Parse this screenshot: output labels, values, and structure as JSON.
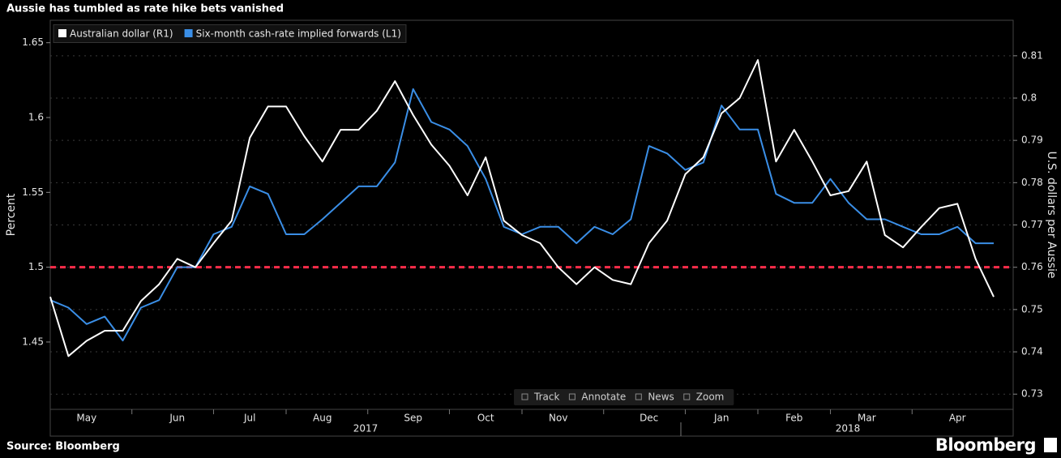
{
  "chart_data": {
    "type": "line",
    "title": "Aussie has tumbled as rate hike bets vanished",
    "source": "Source: Bloomberg",
    "brand": "Bloomberg",
    "y_label": "Percent",
    "y2_label": "U.S. dollars per Aussie",
    "categories": [
      null,
      null,
      "May",
      null,
      null,
      null,
      null,
      "Jun",
      null,
      null,
      null,
      "Jul",
      null,
      null,
      null,
      "Aug",
      null,
      null,
      null,
      null,
      "Sep",
      null,
      null,
      null,
      "Oct",
      null,
      null,
      null,
      "Nov",
      null,
      null,
      null,
      null,
      "Dec",
      null,
      null,
      null,
      "Jan",
      null,
      null,
      null,
      "Feb",
      null,
      null,
      null,
      "Mar",
      null,
      null,
      null,
      null,
      "Apr",
      null,
      null
    ],
    "year_labels": [
      "2017",
      "2018"
    ],
    "ylim": [
      1.405,
      1.665
    ],
    "yticks": [
      1.45,
      1.5,
      1.55,
      1.6,
      1.65
    ],
    "y2lim": [
      0.7264,
      0.8184
    ],
    "y2ticks": [
      0.73,
      0.74,
      0.75,
      0.76,
      0.77,
      0.78,
      0.79,
      0.8,
      0.81
    ],
    "grid": true,
    "reference_line": {
      "value": 1.5,
      "color": "#ff2d4a"
    },
    "series": [
      {
        "name": "Australian dollar (R1)",
        "color": "#ffffff",
        "axis": "y2",
        "values": [
          0.753,
          0.739,
          0.7426,
          0.745,
          0.745,
          0.752,
          0.756,
          0.762,
          0.76,
          0.7657,
          0.771,
          0.7906,
          0.798,
          0.798,
          0.791,
          0.785,
          0.7925,
          0.7925,
          0.797,
          0.804,
          0.796,
          0.789,
          0.784,
          0.777,
          0.786,
          0.771,
          0.7676,
          0.7657,
          0.76,
          0.756,
          0.76,
          0.757,
          0.756,
          0.7657,
          0.771,
          0.782,
          0.786,
          0.7964,
          0.8,
          0.809,
          0.785,
          0.7925,
          0.785,
          0.777,
          0.778,
          0.785,
          0.7676,
          0.7647,
          0.7695,
          0.774,
          0.775,
          0.762,
          0.753
        ]
      },
      {
        "name": "Six-month cash-rate implied forwards (L1)",
        "color": "#3a8ee6",
        "values": [
          1.478,
          1.473,
          1.462,
          1.467,
          1.451,
          1.473,
          1.478,
          1.5,
          1.5,
          1.522,
          1.527,
          1.554,
          1.549,
          1.522,
          1.522,
          1.532,
          1.543,
          1.554,
          1.554,
          1.57,
          1.619,
          1.597,
          1.592,
          1.581,
          1.559,
          1.527,
          1.522,
          1.527,
          1.527,
          1.516,
          1.527,
          1.522,
          1.532,
          1.581,
          1.576,
          1.565,
          1.57,
          1.608,
          1.592,
          1.592,
          1.549,
          1.543,
          1.543,
          1.559,
          1.543,
          1.532,
          1.532,
          1.527,
          1.522,
          1.522,
          1.527,
          1.516,
          1.516
        ]
      }
    ],
    "toolbar": [
      "Track",
      "Annotate",
      "News",
      "Zoom"
    ]
  }
}
